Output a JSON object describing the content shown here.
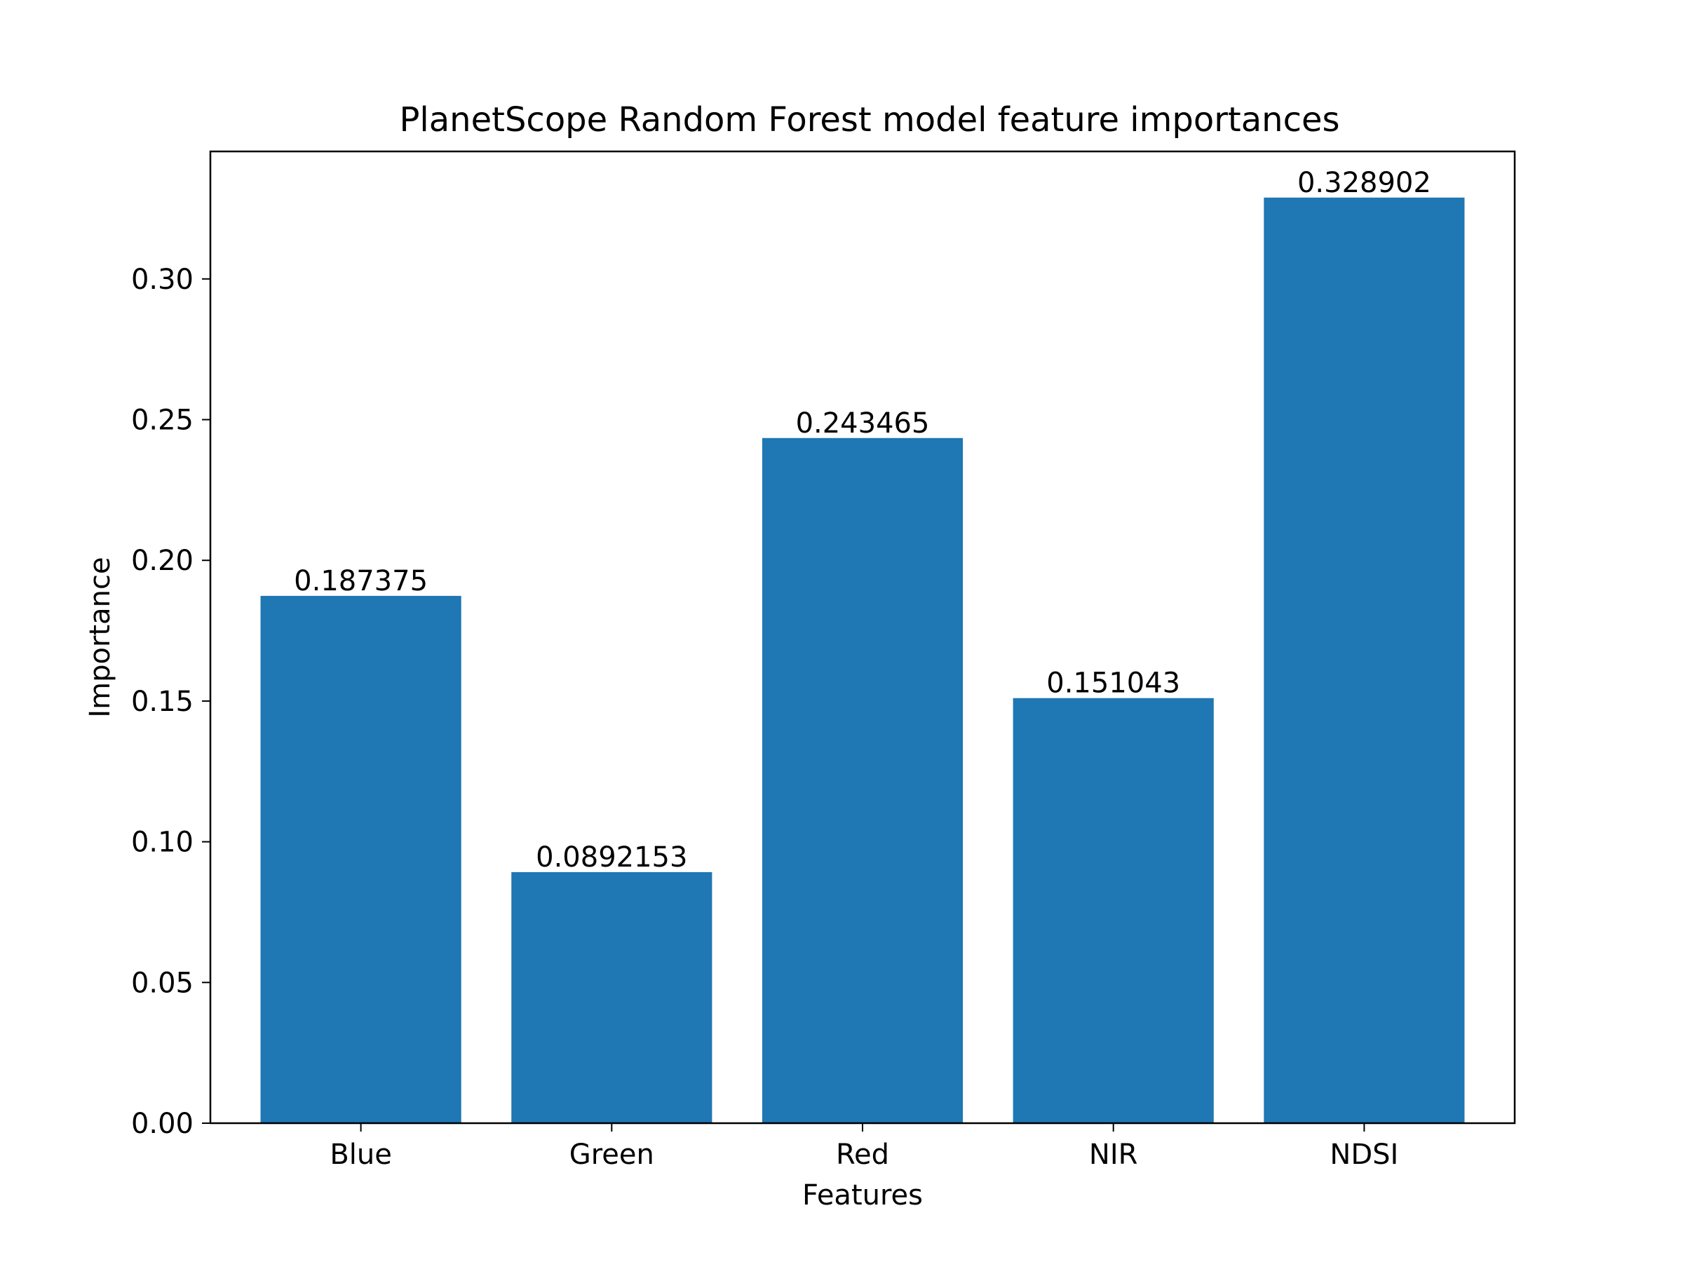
{
  "chart_data": {
    "type": "bar",
    "title": "PlanetScope Random Forest model feature importances",
    "xlabel": "Features",
    "ylabel": "Importance",
    "categories": [
      "Blue",
      "Green",
      "Red",
      "NIR",
      "NDSI"
    ],
    "values": [
      0.187375,
      0.0892153,
      0.243465,
      0.151043,
      0.328902
    ],
    "data_labels": [
      "0.187375",
      "0.0892153",
      "0.243465",
      "0.151043",
      "0.328902"
    ],
    "yticks": [
      0.0,
      0.05,
      0.1,
      0.15,
      0.2,
      0.25,
      0.3
    ],
    "ytick_labels": [
      "0.00",
      "0.05",
      "0.10",
      "0.15",
      "0.20",
      "0.25",
      "0.30"
    ],
    "ylim": [
      0,
      0.3453
    ],
    "grid": false,
    "legend": "none",
    "bar_color": "#1f77b4"
  }
}
